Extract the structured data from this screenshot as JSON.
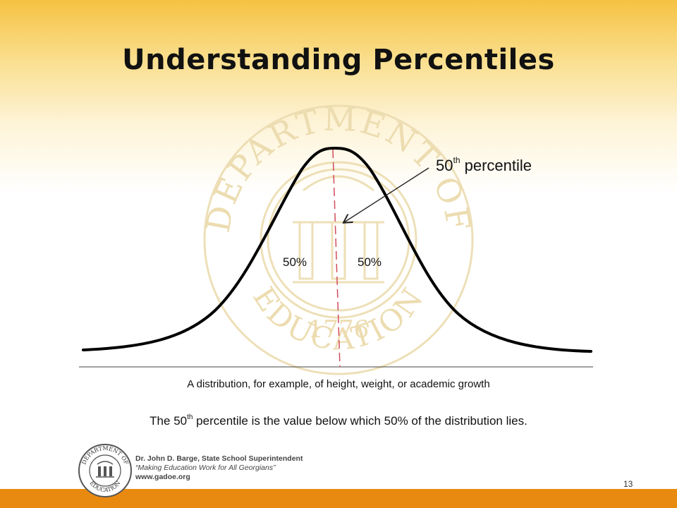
{
  "slide": {
    "title": "Understanding Percentiles",
    "left_percent_label": "50%",
    "right_percent_label": "50%",
    "callout_number": "50",
    "callout_superscript": "th",
    "callout_text": " percentile",
    "axis_caption": "A distribution, for example, of height, weight, or academic growth",
    "statement_before": "The 50",
    "statement_superscript": "th",
    "statement_after": " percentile is the value below which 50% of the distribution lies.",
    "page_number": "13"
  },
  "footer": {
    "line1": "Dr. John D. Barge, State School Superintendent",
    "line2": "“Making Education Work for All Georgians”",
    "line3": "www.gadoe.org",
    "bar_color": "#e98a10"
  },
  "seal": {
    "top_text": "DEPARTMENT OF",
    "bottom_text": "EDUCATION",
    "year": "1776",
    "footer_seal_top": "DEPARTMENT OF",
    "footer_seal_bottom": "EDUCATION"
  },
  "colors": {
    "title": "#111111",
    "median_line": "#d24b5a",
    "gradient_top": "#f5c242"
  },
  "icons": [
    "seal-watermark-icon",
    "arrow-icon",
    "footer-seal-icon"
  ]
}
